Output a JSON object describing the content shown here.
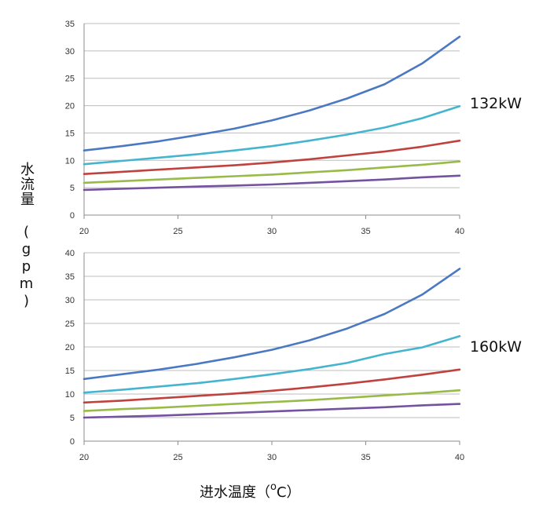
{
  "ylabel": "水流量 (gpm)",
  "xlabel_prefix": "进水温度（",
  "xlabel_degree": "o",
  "xlabel_suffix": "C）",
  "colors": {
    "grid": "#bdbdbd",
    "axis": "#8c8c8c",
    "series": [
      "#4a78c2",
      "#45b5cf",
      "#c0423e",
      "#98bb48",
      "#7452a0"
    ]
  },
  "chart_data": [
    {
      "type": "line",
      "annotation": "132kW",
      "xlim": [
        20,
        40
      ],
      "ylim": [
        0,
        35
      ],
      "xticks": [
        20,
        25,
        30,
        35,
        40
      ],
      "yticks": [
        0,
        5,
        10,
        15,
        20,
        25,
        30,
        35
      ],
      "grid": true,
      "x": [
        20,
        22,
        24,
        26,
        28,
        30,
        32,
        34,
        36,
        38,
        40
      ],
      "series": [
        {
          "values": [
            11.8,
            12.6,
            13.5,
            14.6,
            15.8,
            17.3,
            19.1,
            21.3,
            23.9,
            27.7,
            32.6
          ]
        },
        {
          "values": [
            9.3,
            9.9,
            10.5,
            11.1,
            11.8,
            12.6,
            13.6,
            14.7,
            16.0,
            17.7,
            19.9
          ]
        },
        {
          "values": [
            7.5,
            7.9,
            8.3,
            8.7,
            9.1,
            9.6,
            10.2,
            10.9,
            11.6,
            12.5,
            13.6
          ]
        },
        {
          "values": [
            5.9,
            6.2,
            6.5,
            6.8,
            7.1,
            7.4,
            7.8,
            8.2,
            8.7,
            9.2,
            9.8
          ]
        },
        {
          "values": [
            4.6,
            4.8,
            5.0,
            5.2,
            5.4,
            5.6,
            5.9,
            6.2,
            6.5,
            6.9,
            7.2
          ]
        }
      ]
    },
    {
      "type": "line",
      "annotation": "160kW",
      "xlim": [
        20,
        40
      ],
      "ylim": [
        0,
        40
      ],
      "xticks": [
        20,
        25,
        30,
        35,
        40
      ],
      "yticks": [
        0,
        5,
        10,
        15,
        20,
        25,
        30,
        35,
        40
      ],
      "grid": true,
      "x": [
        20,
        22,
        24,
        26,
        28,
        30,
        32,
        34,
        36,
        38,
        40
      ],
      "series": [
        {
          "values": [
            13.2,
            14.2,
            15.2,
            16.4,
            17.8,
            19.4,
            21.4,
            23.9,
            27.0,
            31.1,
            36.6
          ]
        },
        {
          "values": [
            10.3,
            10.9,
            11.6,
            12.3,
            13.2,
            14.2,
            15.3,
            16.6,
            18.5,
            19.9,
            22.3
          ]
        },
        {
          "values": [
            8.2,
            8.6,
            9.1,
            9.6,
            10.1,
            10.7,
            11.4,
            12.2,
            13.1,
            14.1,
            15.2
          ]
        },
        {
          "values": [
            6.4,
            6.8,
            7.1,
            7.5,
            7.9,
            8.3,
            8.7,
            9.2,
            9.7,
            10.2,
            10.8
          ]
        },
        {
          "values": [
            5.0,
            5.2,
            5.4,
            5.7,
            6.0,
            6.3,
            6.6,
            6.9,
            7.2,
            7.6,
            7.9
          ]
        }
      ]
    }
  ]
}
